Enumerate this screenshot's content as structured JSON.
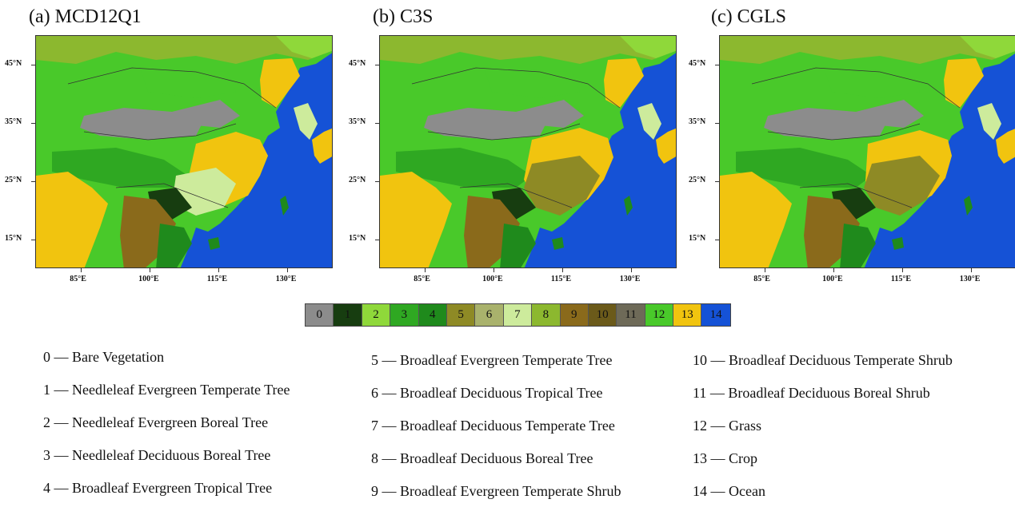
{
  "panels": [
    {
      "title": "(a) MCD12Q1"
    },
    {
      "title": "(b) C3S"
    },
    {
      "title": "(c) CGLS"
    }
  ],
  "axes": {
    "lat_labels": [
      "45°N",
      "35°N",
      "25°N",
      "15°N"
    ],
    "lon_labels": [
      "85°E",
      "100°E",
      "115°E",
      "130°E"
    ]
  },
  "colorbar": [
    {
      "label": "0",
      "color": "#8c8c8c"
    },
    {
      "label": "1",
      "color": "#173d10"
    },
    {
      "label": "2",
      "color": "#8fd83a"
    },
    {
      "label": "3",
      "color": "#2fa822"
    },
    {
      "label": "4",
      "color": "#1f8a1c"
    },
    {
      "label": "5",
      "color": "#8e8a25"
    },
    {
      "label": "6",
      "color": "#a9b26c"
    },
    {
      "label": "7",
      "color": "#cdeb9c"
    },
    {
      "label": "8",
      "color": "#8cb82f"
    },
    {
      "label": "9",
      "color": "#8a6a1b"
    },
    {
      "label": "10",
      "color": "#6b5a1a"
    },
    {
      "label": "11",
      "color": "#6e6a58"
    },
    {
      "label": "12",
      "color": "#49c92a"
    },
    {
      "label": "13",
      "color": "#f1c40f"
    },
    {
      "label": "14",
      "color": "#1552d6"
    }
  ],
  "legend": {
    "col1": [
      "0 — Bare Vegetation",
      "1 — Needleleaf Evergreen Temperate Tree",
      "2 — Needleleaf Evergreen Boreal Tree",
      "3 — Needleleaf Deciduous Boreal Tree",
      "4 — Broadleaf Evergreen Tropical Tree"
    ],
    "col2": [
      "5 — Broadleaf Evergreen Temperate Tree",
      "6 — Broadleaf Deciduous Tropical Tree",
      "7 — Broadleaf Deciduous Temperate Tree",
      "8 — Broadleaf Deciduous Boreal Tree",
      "9 — Broadleaf Evergreen Temperate Shrub"
    ],
    "col3": [
      "10 — Broadleaf Deciduous Temperate Shrub",
      "11 — Broadleaf Deciduous Boreal Shrub",
      "12 — Grass",
      "13 — Crop",
      "14 — Ocean"
    ]
  }
}
